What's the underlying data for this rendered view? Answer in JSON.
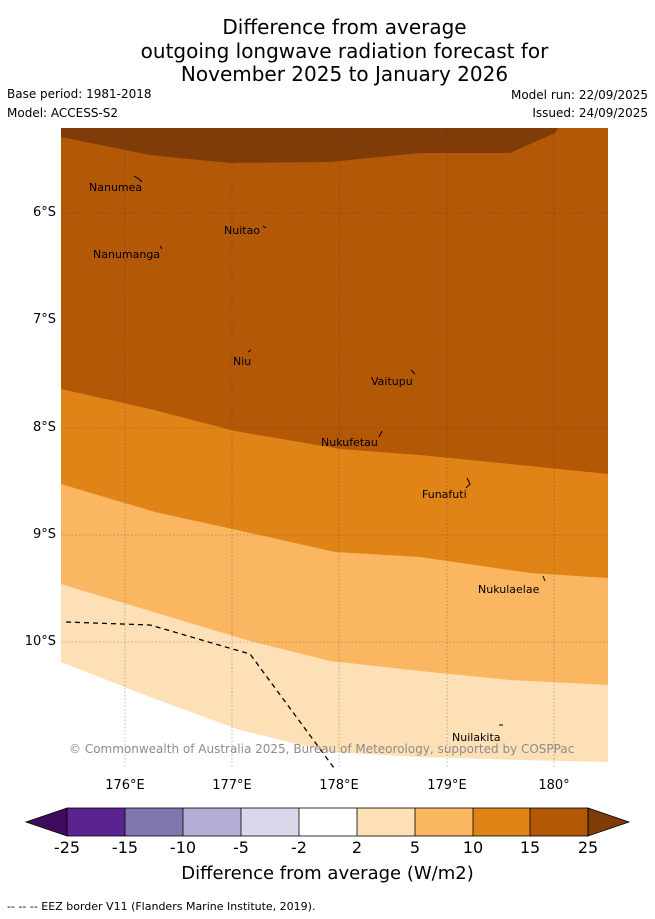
{
  "title": {
    "line1": "Difference from average",
    "line2": "outgoing longwave radiation forecast for",
    "line3": "November 2025 to January 2026"
  },
  "meta": {
    "base_period": "Base period: 1981-2018",
    "model": "Model: ACCESS-S2",
    "model_run": "Model run: 22/09/2025",
    "issued": "Issued: 24/09/2025"
  },
  "axes": {
    "lat_labels": [
      "6°S",
      "7°S",
      "8°S",
      "9°S",
      "10°S"
    ],
    "lon_labels": [
      "176°E",
      "177°E",
      "178°E",
      "179°E",
      "180°"
    ]
  },
  "places": [
    {
      "name": "Nanumea"
    },
    {
      "name": "Nuitao"
    },
    {
      "name": "Nanumanga"
    },
    {
      "name": "Niu"
    },
    {
      "name": "Vaitupu"
    },
    {
      "name": "Nukufetau"
    },
    {
      "name": "Funafuti"
    },
    {
      "name": "Nukulaelae"
    },
    {
      "name": "Nuilakita"
    }
  ],
  "copyright": "© Commonwealth of Australia 2025, Bureau of Meteorology, supported by COSPPac",
  "colorbar": {
    "ticks": [
      "-25",
      "-15",
      "-10",
      "-5",
      "-2",
      "2",
      "5",
      "10",
      "15",
      "25"
    ],
    "label": "Difference from average (W/m2)",
    "colors": [
      "#3f0b5c",
      "#5a2390",
      "#8175ae",
      "#b3acd3",
      "#d9d8eb",
      "#ffffff",
      "#fde0b5",
      "#fbb661",
      "#e18418",
      "#b25807",
      "#7f3b08"
    ]
  },
  "footnote": "-- -- -- EEZ border V11 (Flanders Marine Institute, 2019).",
  "map_colors": {
    "band_gt25": "#7f3b08",
    "band_15_25": "#b25807",
    "band_10_15": "#e18418",
    "band_5_10": "#fbb661",
    "band_2_5": "#fde0b5"
  }
}
